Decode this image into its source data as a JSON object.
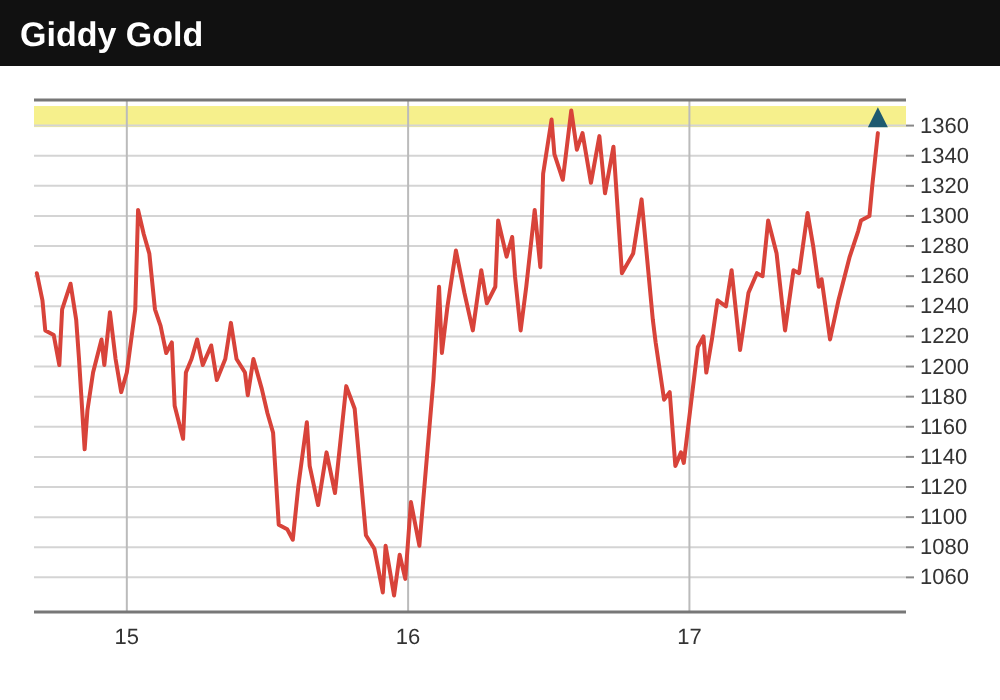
{
  "chart_data": {
    "type": "line",
    "title": "Giddy Gold",
    "xlim": [
      2014.67,
      2017.77
    ],
    "xticks": [
      {
        "value": 2015,
        "label": "15"
      },
      {
        "value": 2016,
        "label": "16"
      },
      {
        "value": 2017,
        "label": "17"
      }
    ],
    "ylim": [
      1037,
      1377
    ],
    "yticks": [
      1060,
      1080,
      1100,
      1120,
      1140,
      1160,
      1180,
      1200,
      1220,
      1240,
      1260,
      1280,
      1300,
      1320,
      1340,
      1360
    ],
    "grid": true,
    "marker": "none",
    "line_style": "solid",
    "bands": [
      {
        "axis": "y",
        "from": 1359,
        "to": 1373,
        "color": "#f6f08c"
      }
    ],
    "series": [
      {
        "color": "#d8433a",
        "x": [
          2014.68,
          2014.7,
          2014.71,
          2014.74,
          2014.76,
          2014.77,
          2014.8,
          2014.82,
          2014.83,
          2014.85,
          2014.86,
          2014.88,
          2014.91,
          2014.92,
          2014.94,
          2014.96,
          2014.98,
          2015.0,
          2015.03,
          2015.04,
          2015.06,
          2015.08,
          2015.1,
          2015.12,
          2015.14,
          2015.16,
          2015.17,
          2015.2,
          2015.21,
          2015.23,
          2015.25,
          2015.27,
          2015.3,
          2015.32,
          2015.35,
          2015.37,
          2015.39,
          2015.42,
          2015.43,
          2015.45,
          2015.48,
          2015.5,
          2015.52,
          2015.54,
          2015.57,
          2015.59,
          2015.61,
          2015.64,
          2015.65,
          2015.68,
          2015.71,
          2015.74,
          2015.78,
          2015.81,
          2015.85,
          2015.88,
          2015.91,
          2015.92,
          2015.95,
          2015.97,
          2015.99,
          2016.01,
          2016.04,
          2016.06,
          2016.09,
          2016.11,
          2016.12,
          2016.14,
          2016.17,
          2016.2,
          2016.23,
          2016.26,
          2016.28,
          2016.31,
          2016.32,
          2016.35,
          2016.37,
          2016.38,
          2016.4,
          2016.42,
          2016.45,
          2016.47,
          2016.48,
          2016.51,
          2016.52,
          2016.55,
          2016.58,
          2016.6,
          2016.62,
          2016.65,
          2016.68,
          2016.7,
          2016.73,
          2016.76,
          2016.8,
          2016.83,
          2016.87,
          2016.88,
          2016.91,
          2016.93,
          2016.95,
          2016.97,
          2016.98,
          2017.03,
          2017.05,
          2017.06,
          2017.08,
          2017.1,
          2017.13,
          2017.15,
          2017.18,
          2017.21,
          2017.24,
          2017.26,
          2017.28,
          2017.31,
          2017.34,
          2017.37,
          2017.39,
          2017.42,
          2017.44,
          2017.46,
          2017.47,
          2017.5,
          2017.53,
          2017.57,
          2017.6,
          2017.61,
          2017.64,
          2017.65,
          2017.67
        ],
        "values": [
          1262,
          1244,
          1224,
          1221,
          1201,
          1238,
          1255,
          1231,
          1205,
          1145,
          1171,
          1196,
          1218,
          1201,
          1236,
          1205,
          1183,
          1196,
          1238,
          1304,
          1288,
          1275,
          1238,
          1227,
          1209,
          1216,
          1174,
          1152,
          1196,
          1205,
          1218,
          1201,
          1214,
          1191,
          1205,
          1229,
          1205,
          1196,
          1181,
          1205,
          1185,
          1169,
          1156,
          1095,
          1092,
          1085,
          1121,
          1163,
          1134,
          1108,
          1143,
          1116,
          1187,
          1172,
          1088,
          1079,
          1050,
          1081,
          1048,
          1075,
          1059,
          1110,
          1081,
          1125,
          1191,
          1253,
          1209,
          1240,
          1277,
          1249,
          1224,
          1264,
          1242,
          1253,
          1297,
          1273,
          1286,
          1260,
          1224,
          1253,
          1304,
          1266,
          1328,
          1364,
          1341,
          1324,
          1370,
          1344,
          1355,
          1322,
          1353,
          1315,
          1346,
          1262,
          1275,
          1311,
          1231,
          1216,
          1178,
          1183,
          1134,
          1143,
          1136,
          1213,
          1220,
          1196,
          1218,
          1244,
          1240,
          1264,
          1211,
          1249,
          1262,
          1260,
          1297,
          1275,
          1224,
          1264,
          1262,
          1302,
          1280,
          1253,
          1258,
          1218,
          1244,
          1273,
          1290,
          1297,
          1300,
          1320,
          1355
        ]
      }
    ]
  }
}
